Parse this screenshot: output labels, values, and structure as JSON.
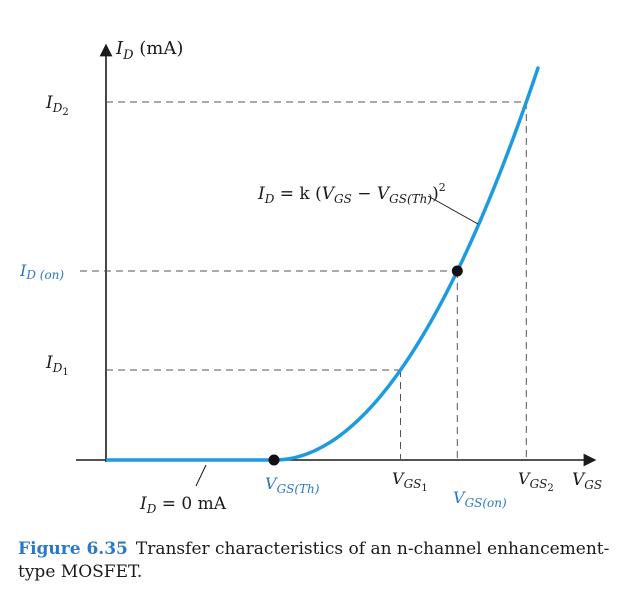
{
  "chart_data": {
    "type": "line",
    "title": "",
    "ylabel_main": "I",
    "ylabel_sub": "D",
    "ylabel_unit": " (mA)",
    "xlabel_main": "V",
    "xlabel_sub": "GS",
    "y_ticks": [
      {
        "main": "I",
        "sub": "D",
        "subsub": "2",
        "level": "ID2"
      },
      {
        "main": "I",
        "sub": "D (on)",
        "subsub": "",
        "level": "IDon"
      },
      {
        "main": "I",
        "sub": "D",
        "subsub": "1",
        "level": "ID1"
      }
    ],
    "x_ticks": [
      {
        "main": "V",
        "sub": "GS(Th)",
        "subsub": "",
        "level": "VTh"
      },
      {
        "main": "V",
        "sub": "GS",
        "subsub": "1",
        "level": "V1"
      },
      {
        "main": "V",
        "sub": "GS(on)",
        "subsub": "",
        "level": "Von"
      },
      {
        "main": "V",
        "sub": "GS",
        "subsub": "2",
        "level": "V2"
      }
    ],
    "equation": {
      "lhs_main": "I",
      "lhs_sub": "D",
      "eq": " = k (",
      "v1": "V",
      "v1_sub": "GS",
      "minus": " − ",
      "v2": "V",
      "v2_sub": "GS(Th)",
      "close": ")",
      "exp": "2"
    },
    "off_label": {
      "main": "I",
      "sub": "D",
      "rest": " = 0 mA"
    },
    "series": [
      {
        "x": [
          0,
          0.1,
          0.2,
          0.3,
          0.4,
          0.5,
          0.6,
          0.7,
          0.8,
          0.9,
          1.0
        ],
        "y": [
          0,
          0.01,
          0.04,
          0.09,
          0.16,
          0.25,
          0.36,
          0.49,
          0.64,
          0.81,
          1.0
        ],
        "off_segment": [
          0,
          0
        ]
      }
    ],
    "colors": {
      "curve": "#1e9be0",
      "axis": "#1a1a1a",
      "dash": "#555555",
      "accent": "#2a78c8"
    }
  },
  "caption": {
    "figure": "Figure 6.35",
    "text": "Transfer characteristics of an n-channel enhancement-type MOSFET."
  }
}
